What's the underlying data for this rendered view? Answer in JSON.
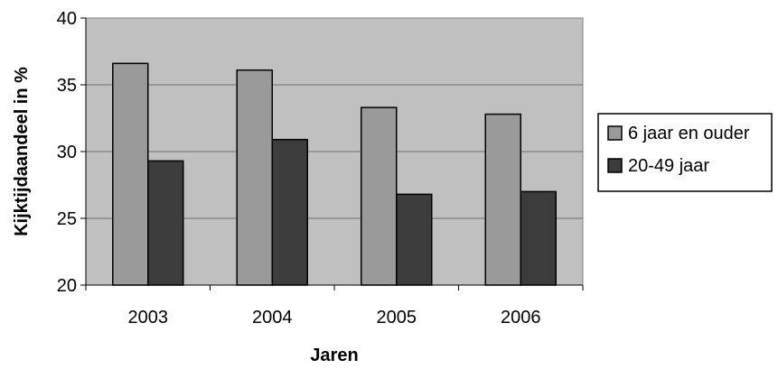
{
  "chart_data": {
    "type": "bar",
    "categories": [
      "2003",
      "2004",
      "2005",
      "2006"
    ],
    "series": [
      {
        "name": "6 jaar en ouder",
        "values": [
          36.6,
          36.1,
          33.3,
          32.8
        ],
        "color": "#9a9a9a"
      },
      {
        "name": "20-49 jaar",
        "values": [
          29.3,
          30.9,
          26.8,
          27.0
        ],
        "color": "#3c3c3c"
      }
    ],
    "xlabel": "Jaren",
    "ylabel": "Kijktijdaandeel in %",
    "ylim": [
      20,
      40
    ],
    "yticks": [
      "20",
      "25",
      "30",
      "35",
      "40"
    ],
    "grid": true,
    "legend": "right",
    "plot_background": "#c0c0c0"
  }
}
